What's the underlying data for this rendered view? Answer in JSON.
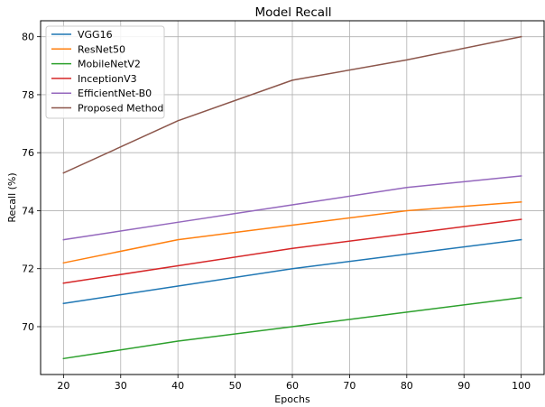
{
  "chart_data": {
    "type": "line",
    "title": "Model Recall",
    "xlabel": "Epochs",
    "ylabel": "Recall (%)",
    "x": [
      20,
      40,
      60,
      80,
      100
    ],
    "xticks": [
      20,
      30,
      40,
      50,
      60,
      70,
      80,
      90,
      100
    ],
    "yticks": [
      70,
      72,
      74,
      76,
      78,
      80
    ],
    "xlim": [
      16,
      104
    ],
    "ylim": [
      68.35,
      80.55
    ],
    "grid": true,
    "legend_position": "top-left",
    "series": [
      {
        "name": "VGG16",
        "color": "#1f77b4",
        "values": [
          70.8,
          71.4,
          72.0,
          72.5,
          73.0
        ]
      },
      {
        "name": "ResNet50",
        "color": "#ff7f0e",
        "values": [
          72.2,
          73.0,
          73.5,
          74.0,
          74.3
        ]
      },
      {
        "name": "MobileNetV2",
        "color": "#2ca02c",
        "values": [
          68.9,
          69.5,
          70.0,
          70.5,
          71.0
        ]
      },
      {
        "name": "InceptionV3",
        "color": "#d62728",
        "values": [
          71.5,
          72.1,
          72.7,
          73.2,
          73.7
        ]
      },
      {
        "name": "EfficientNet-B0",
        "color": "#9467bd",
        "values": [
          73.0,
          73.6,
          74.2,
          74.8,
          75.2
        ]
      },
      {
        "name": "Proposed Method",
        "color": "#8c564b",
        "values": [
          75.3,
          77.1,
          78.5,
          79.2,
          80.0
        ]
      }
    ]
  }
}
